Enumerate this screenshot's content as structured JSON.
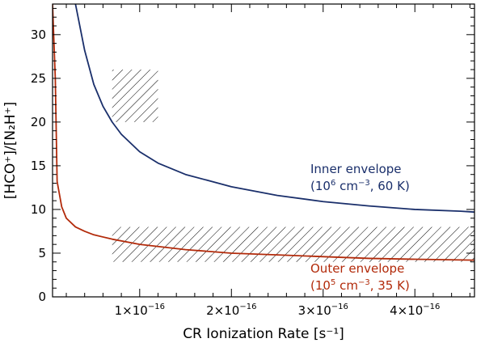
{
  "chart_data": {
    "type": "line",
    "xlabel": "CR Ionization Rate [s⁻¹]",
    "ylabel": "[HCO⁺]/[N₂H⁺]",
    "xlim": [
      5e-18,
      4.65e-16
    ],
    "ylim": [
      0,
      33.5
    ],
    "xticks": [
      {
        "value": 1e-16,
        "mantissa": "1",
        "exp": "−16"
      },
      {
        "value": 2e-16,
        "mantissa": "2",
        "exp": "−16"
      },
      {
        "value": 3e-16,
        "mantissa": "3",
        "exp": "−16"
      },
      {
        "value": 4e-16,
        "mantissa": "4",
        "exp": "−16"
      }
    ],
    "yticks": [
      0,
      5,
      10,
      15,
      20,
      25,
      30
    ],
    "grid": false,
    "series": [
      {
        "name": "Inner envelope",
        "color": "#1a2f6b",
        "x": [
          3e-17,
          4e-17,
          5e-17,
          6e-17,
          7e-17,
          8e-17,
          1e-16,
          1.2e-16,
          1.5e-16,
          2e-16,
          2.5e-16,
          3e-16,
          3.5e-16,
          4e-16,
          4.5e-16,
          4.65e-16
        ],
        "y": [
          33.5,
          28.2,
          24.3,
          21.8,
          20.0,
          18.6,
          16.6,
          15.3,
          14.0,
          12.6,
          11.6,
          10.9,
          10.4,
          10.0,
          9.8,
          9.7
        ]
      },
      {
        "name": "Outer envelope",
        "color": "#b22a0a",
        "x": [
          5e-18,
          8e-18,
          1e-17,
          1.5e-17,
          2e-17,
          3e-17,
          4e-17,
          5e-17,
          7e-17,
          1e-16,
          1.5e-16,
          2e-16,
          2.5e-16,
          3e-16,
          3.5e-16,
          4e-16,
          4.65e-16
        ],
        "y": [
          33.5,
          25.0,
          13.2,
          10.3,
          9.0,
          8.0,
          7.5,
          7.1,
          6.6,
          6.0,
          5.4,
          5.0,
          4.8,
          4.6,
          4.4,
          4.3,
          4.2
        ]
      }
    ],
    "hatched_regions": [
      {
        "x": [
          7e-17,
          1.2e-16
        ],
        "y": [
          20,
          26
        ]
      },
      {
        "x": [
          7e-17,
          4.65e-16
        ],
        "y": [
          4,
          8
        ]
      }
    ],
    "annotations": [
      {
        "line1": "Inner envelope",
        "line2": {
          "open": "(10",
          "sup1": "6",
          "mid": " cm",
          "sup2": "−3",
          "close": ", 60 K)"
        },
        "color": "#1a2f6b"
      },
      {
        "line1": "Outer envelope",
        "line2": {
          "open": "(10",
          "sup1": "5",
          "mid": " cm",
          "sup2": "−3",
          "close": ", 35 K)"
        },
        "color": "#b22a0a"
      }
    ]
  }
}
